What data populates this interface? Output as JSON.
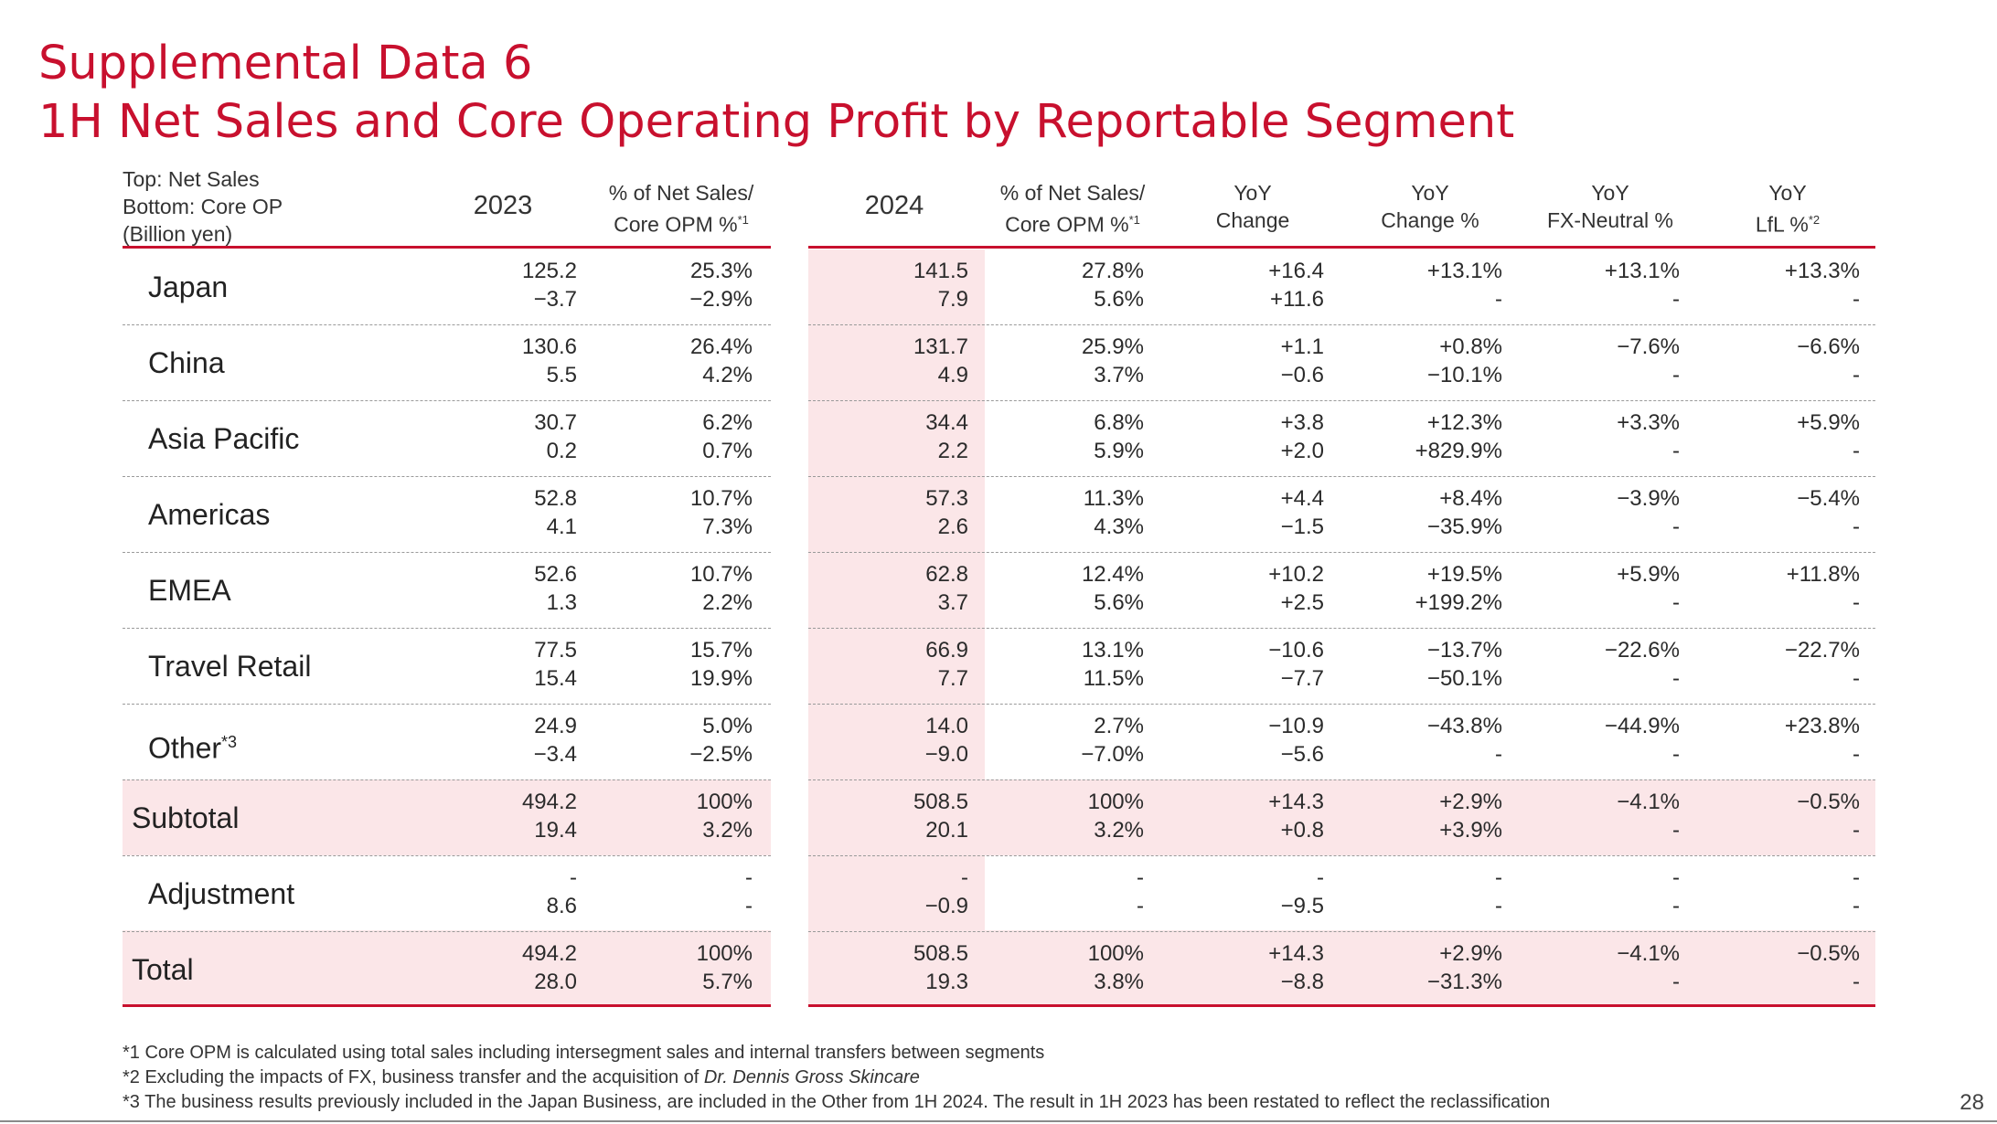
{
  "title_line1": "Supplemental Data 6",
  "title_line2": "1H Net Sales and Core Operating Profit by Reportable Segment",
  "header": {
    "corner_line1": "Top: Net Sales",
    "corner_line2": "Bottom: Core OP",
    "corner_line3": "(Billion yen)",
    "y2023": "2023",
    "pct_a_line1": "% of Net Sales/",
    "pct_a_line2": "Core OPM %",
    "pct_a_sup": "*1",
    "y2024": "2024",
    "pct_b_line1": "% of Net Sales/",
    "pct_b_line2": "Core OPM %",
    "pct_b_sup": "*1",
    "yoy_line1": "YoY",
    "yoy_line2": "Change",
    "yoypct_line1": "YoY",
    "yoypct_line2": "Change %",
    "fx_line1": "YoY",
    "fx_line2": "FX-Neutral %",
    "lfl_line1": "YoY",
    "lfl_line2": "LfL %",
    "lfl_sup": "*2"
  },
  "rows": [
    {
      "label": "Japan",
      "sup": "",
      "top": [
        "125.2",
        "25.3%",
        "141.5",
        "27.8%",
        "+16.4",
        "+13.1%",
        "+13.1%",
        "+13.3%"
      ],
      "bot": [
        "−3.7",
        "−2.9%",
        "7.9",
        "5.6%",
        "+11.6",
        "-",
        "-",
        "-"
      ]
    },
    {
      "label": "China",
      "sup": "",
      "top": [
        "130.6",
        "26.4%",
        "131.7",
        "25.9%",
        "+1.1",
        "+0.8%",
        "−7.6%",
        "−6.6%"
      ],
      "bot": [
        "5.5",
        "4.2%",
        "4.9",
        "3.7%",
        "−0.6",
        "−10.1%",
        "-",
        "-"
      ]
    },
    {
      "label": "Asia Pacific",
      "sup": "",
      "top": [
        "30.7",
        "6.2%",
        "34.4",
        "6.8%",
        "+3.8",
        "+12.3%",
        "+3.3%",
        "+5.9%"
      ],
      "bot": [
        "0.2",
        "0.7%",
        "2.2",
        "5.9%",
        "+2.0",
        "+829.9%",
        "-",
        "-"
      ]
    },
    {
      "label": "Americas",
      "sup": "",
      "top": [
        "52.8",
        "10.7%",
        "57.3",
        "11.3%",
        "+4.4",
        "+8.4%",
        "−3.9%",
        "−5.4%"
      ],
      "bot": [
        "4.1",
        "7.3%",
        "2.6",
        "4.3%",
        "−1.5",
        "−35.9%",
        "-",
        "-"
      ]
    },
    {
      "label": "EMEA",
      "sup": "",
      "top": [
        "52.6",
        "10.7%",
        "62.8",
        "12.4%",
        "+10.2",
        "+19.5%",
        "+5.9%",
        "+11.8%"
      ],
      "bot": [
        "1.3",
        "2.2%",
        "3.7",
        "5.6%",
        "+2.5",
        "+199.2%",
        "-",
        "-"
      ]
    },
    {
      "label": "Travel Retail",
      "sup": "",
      "top": [
        "77.5",
        "15.7%",
        "66.9",
        "13.1%",
        "−10.6",
        "−13.7%",
        "−22.6%",
        "−22.7%"
      ],
      "bot": [
        "15.4",
        "19.9%",
        "7.7",
        "11.5%",
        "−7.7",
        "−50.1%",
        "-",
        "-"
      ]
    },
    {
      "label": "Other",
      "sup": "*3",
      "top": [
        "24.9",
        "5.0%",
        "14.0",
        "2.7%",
        "−10.9",
        "−43.8%",
        "−44.9%",
        "+23.8%"
      ],
      "bot": [
        "−3.4",
        "−2.5%",
        "−9.0",
        "−7.0%",
        "−5.6",
        "-",
        "-",
        "-"
      ]
    },
    {
      "label": "Subtotal",
      "sup": "",
      "top": [
        "494.2",
        "100%",
        "508.5",
        "100%",
        "+14.3",
        "+2.9%",
        "−4.1%",
        "−0.5%"
      ],
      "bot": [
        "19.4",
        "3.2%",
        "20.1",
        "3.2%",
        "+0.8",
        "+3.9%",
        "-",
        "-"
      ]
    },
    {
      "label": "Adjustment",
      "sup": "",
      "top": [
        "-",
        "-",
        "-",
        "-",
        "-",
        "-",
        "-",
        "-"
      ],
      "bot": [
        "8.6",
        "-",
        "−0.9",
        "-",
        "−9.5",
        "-",
        "-",
        "-"
      ]
    },
    {
      "label": "Total",
      "sup": "",
      "top": [
        "494.2",
        "100%",
        "508.5",
        "100%",
        "+14.3",
        "+2.9%",
        "−4.1%",
        "−0.5%"
      ],
      "bot": [
        "28.0",
        "5.7%",
        "19.3",
        "3.8%",
        "−8.8",
        "−31.3%",
        "-",
        "-"
      ]
    }
  ],
  "notes": {
    "n1": "*1 Core OPM is calculated using total sales including intersegment sales and internal transfers between segments",
    "n2_prefix": "*2 Excluding the impacts of FX, business transfer and the acquisition of ",
    "n2_italic": "Dr. Dennis Gross Skincare",
    "n3": "*3 The business results previously included in the Japan Business, are included in the Other from 1H 2024. The result in 1H 2023 has been restated to reflect the reclassification"
  },
  "page_number": "28",
  "colors": {
    "accent": "#c8102e",
    "shade": "#fbe6e8"
  }
}
